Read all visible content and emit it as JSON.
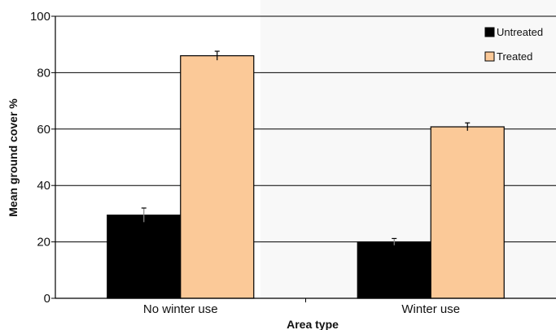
{
  "chart_data": {
    "type": "bar",
    "categories": [
      "No winter use",
      "Winter use"
    ],
    "series": [
      {
        "name": "Untreated",
        "values": [
          29.5,
          20.0
        ],
        "error": [
          2.5,
          1.2
        ],
        "color": "#000000"
      },
      {
        "name": "Treated",
        "values": [
          86.0,
          60.8
        ],
        "error": [
          1.6,
          1.4
        ],
        "color": "#fbc998"
      }
    ],
    "xlabel": "Area type",
    "ylabel": "Mean ground cover %",
    "ylim": [
      0,
      100
    ],
    "yticks": [
      "0",
      "20",
      "40",
      "60",
      "80",
      "100"
    ],
    "grid": true,
    "legend_position": "top-right",
    "background_color": "#f8f8f8"
  }
}
